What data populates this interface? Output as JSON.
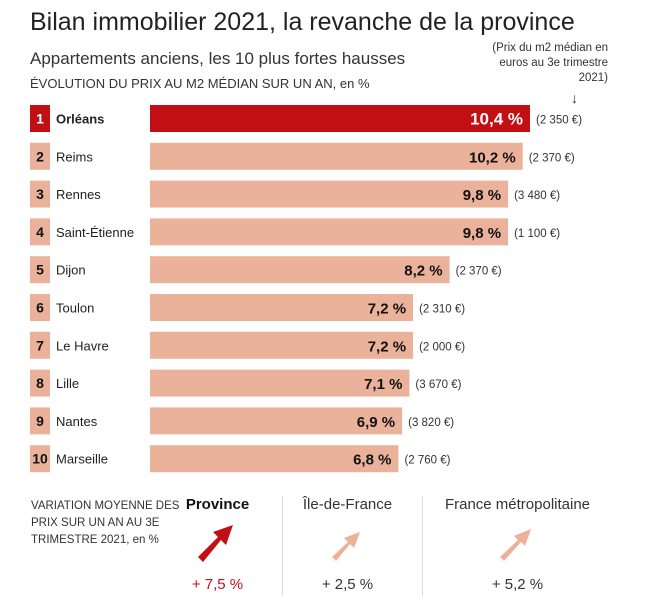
{
  "header": {
    "title": "Bilan immobilier 2021, la revanche de la province",
    "subtitle": "Appartements anciens, les 10 plus fortes hausses",
    "unit_main": "ÉVOLUTION DU PRIX AU M2 MÉDIAN SUR UN AN",
    "unit_suffix": ", en %",
    "price_note": "(Prix du m2 médian en euros au 3e trimestre 2021)",
    "price_arrow": "↓"
  },
  "chart_data": {
    "type": "bar",
    "orientation": "horizontal",
    "categories": [
      "Orléans",
      "Reims",
      "Rennes",
      "Saint-Étienne",
      "Dijon",
      "Toulon",
      "Le Havre",
      "Lille",
      "Nantes",
      "Marseille"
    ],
    "ranks": [
      "1",
      "2",
      "3",
      "4",
      "5",
      "6",
      "7",
      "8",
      "9",
      "10"
    ],
    "values": [
      10.4,
      10.2,
      9.8,
      9.8,
      8.2,
      7.2,
      7.2,
      7.1,
      6.9,
      6.8
    ],
    "value_labels": [
      "10,4 %",
      "10,2 %",
      "9,8 %",
      "9,8 %",
      "8,2 %",
      "7,2 %",
      "7,2 %",
      "7,1 %",
      "6,9 %",
      "6,8 %"
    ],
    "price_labels": [
      "(2 350 €)",
      "(2 370 €)",
      "(3 480 €)",
      "(1 100 €)",
      "(2 370 €)",
      "(2 310 €)",
      "(2 000 €)",
      "(3 670 €)",
      "(3 820 €)",
      "(2 760 €)"
    ],
    "xlim": [
      0,
      10.4
    ],
    "highlight_index": 0,
    "colors": {
      "highlight": "#c10f14",
      "default": "#ebb29b",
      "highlight_text": "#ffffff",
      "default_text": "#111111"
    }
  },
  "footer": {
    "description": "VARIATION MOYENNE DES PRIX SUR UN AN AU 3E TRIMESTRE 2021, en %",
    "regions": [
      {
        "name": "Province",
        "value": "+ 7,5 %",
        "arrow_color": "#c10f14"
      },
      {
        "name": "Île-de-France",
        "value": "+ 2,5 %",
        "arrow_color": "#ebb29b"
      },
      {
        "name": "France métropolitaine",
        "value": "+ 5,2 %",
        "arrow_color": "#ebb29b"
      }
    ]
  }
}
